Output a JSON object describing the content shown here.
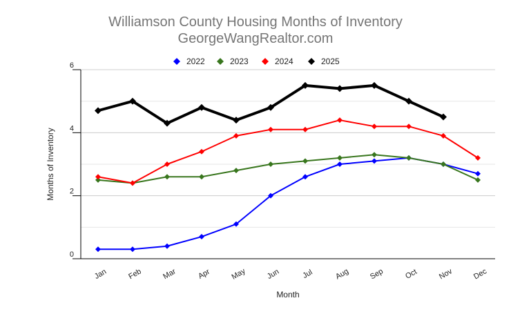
{
  "chart_data": {
    "type": "line",
    "title": "Williamson County Housing Months of Inventory",
    "subtitle": "GeorgeWangRealtor.com",
    "xlabel": "Month",
    "ylabel": "Months of Inventory",
    "ylim": [
      0,
      6
    ],
    "yticks": [
      0,
      2,
      4,
      6
    ],
    "grid": true,
    "legend": "top",
    "categories": [
      "Jan",
      "Feb",
      "Mar",
      "Apr",
      "May",
      "Jun",
      "Jul",
      "Aug",
      "Sep",
      "Oct",
      "Nov",
      "Dec"
    ],
    "series": [
      {
        "name": "2022",
        "color": "#0000ff",
        "values": [
          0.3,
          0.3,
          0.4,
          0.7,
          1.1,
          2.0,
          2.6,
          3.0,
          3.1,
          3.2,
          3.0,
          2.7
        ]
      },
      {
        "name": "2023",
        "color": "#38761d",
        "values": [
          2.5,
          2.4,
          2.6,
          2.6,
          2.8,
          3.0,
          3.1,
          3.2,
          3.3,
          3.2,
          3.0,
          2.5
        ]
      },
      {
        "name": "2024",
        "color": "#ff0000",
        "values": [
          2.6,
          2.4,
          3.0,
          3.4,
          3.9,
          4.1,
          4.1,
          4.4,
          4.2,
          4.2,
          3.9,
          3.2
        ]
      },
      {
        "name": "2025",
        "color": "#000000",
        "values": [
          4.7,
          5.0,
          4.3,
          4.8,
          4.4,
          4.8,
          5.5,
          5.4,
          5.5,
          5.0,
          4.5,
          null
        ]
      }
    ]
  }
}
